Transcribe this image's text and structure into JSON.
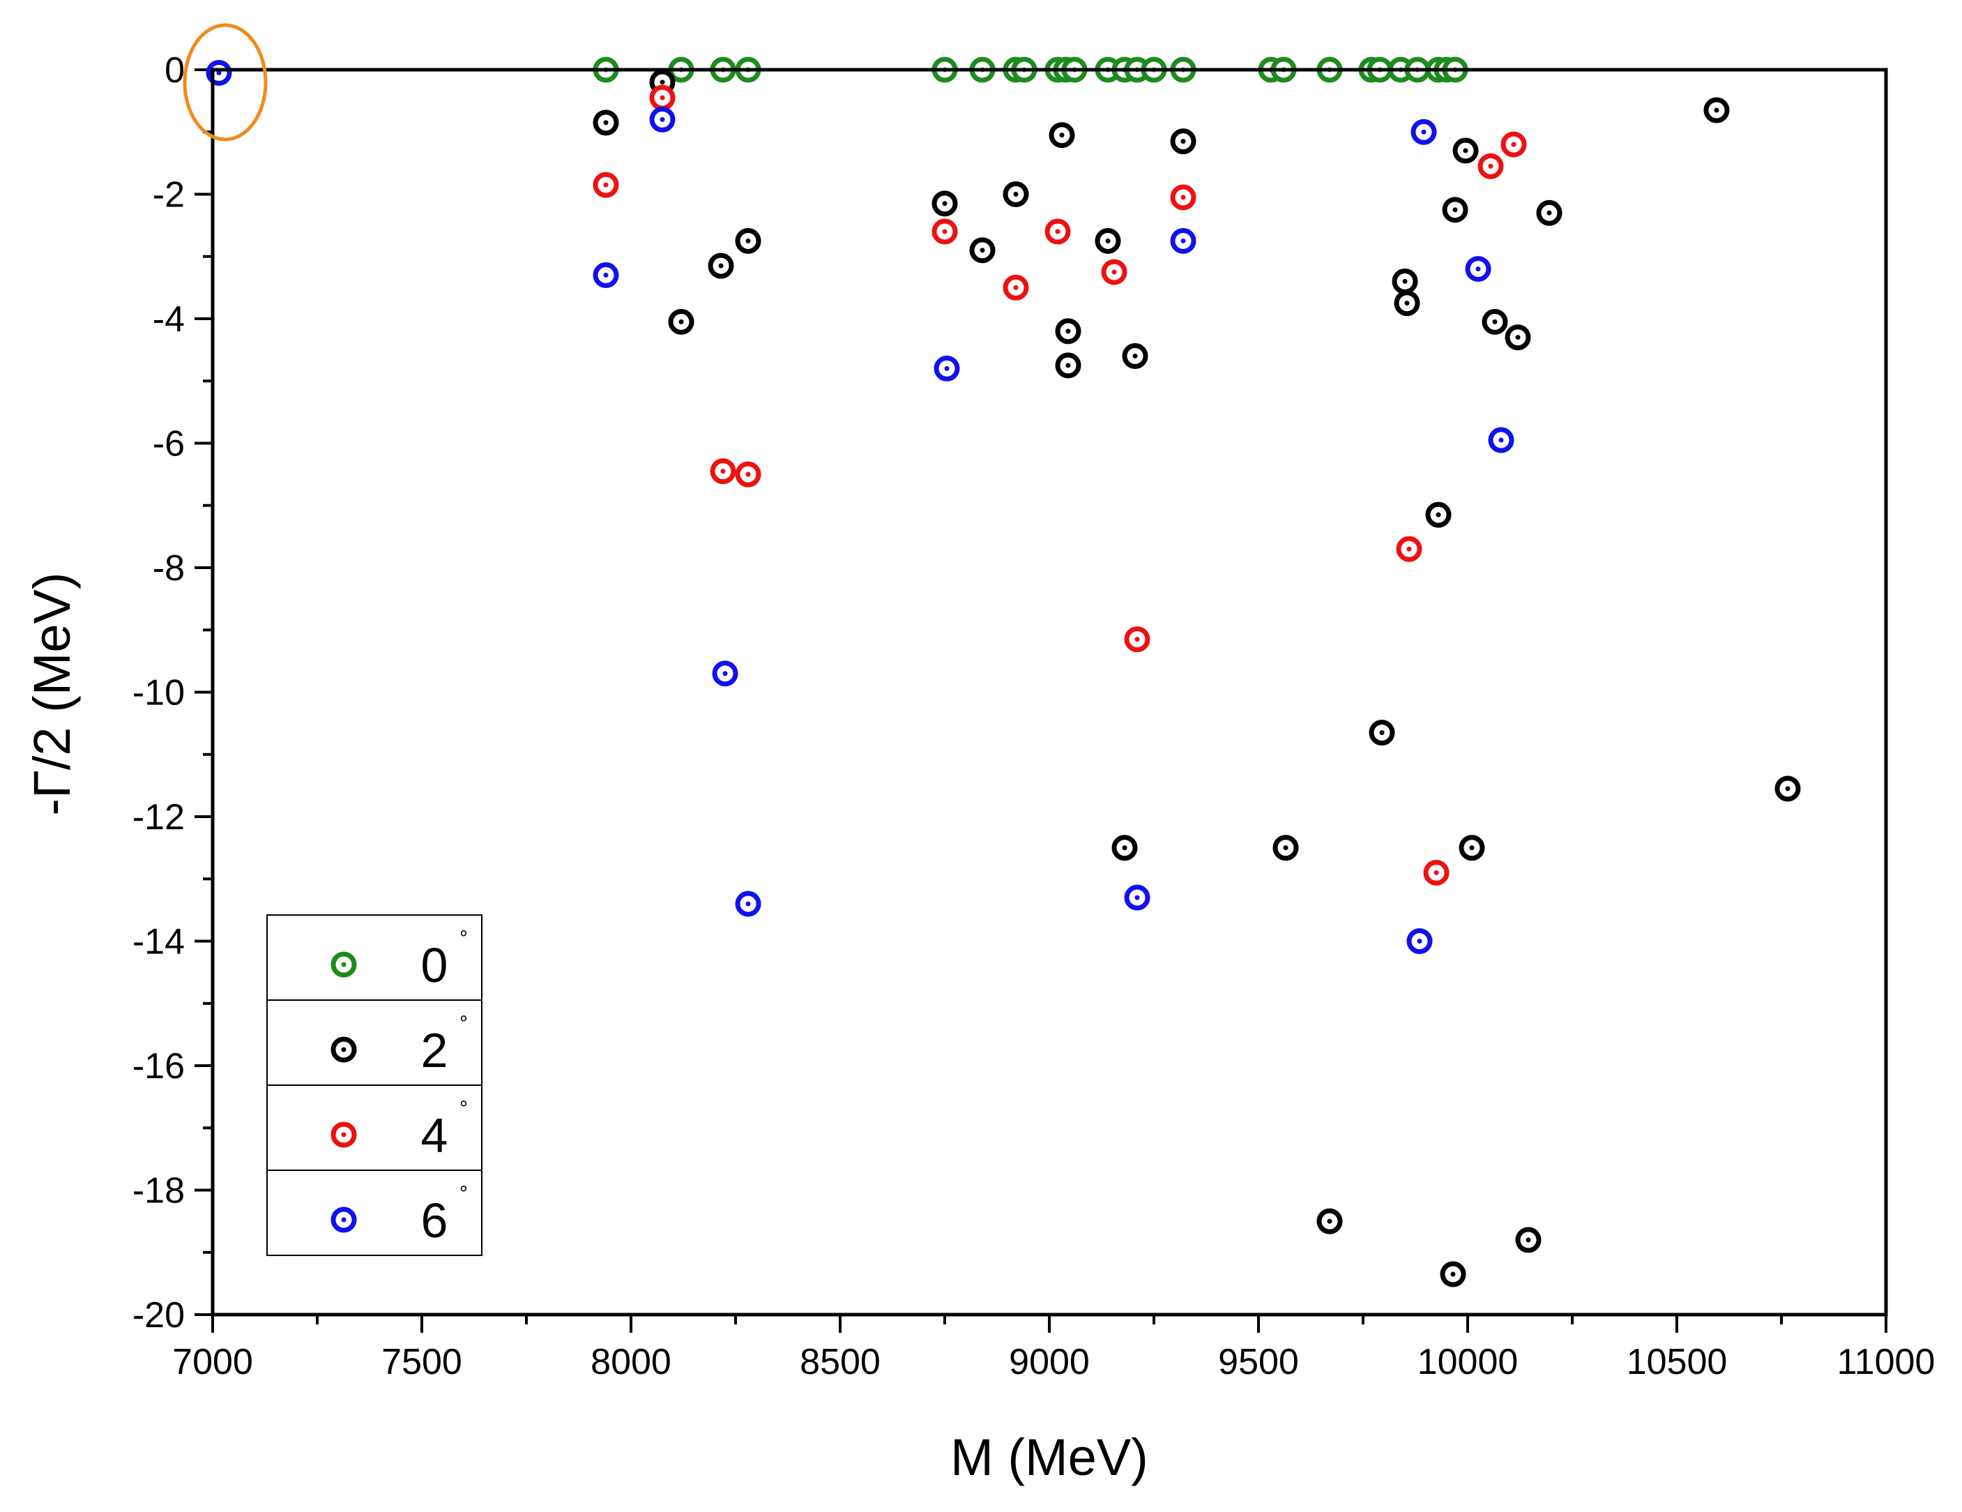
{
  "chart_data": {
    "type": "scatter",
    "title": "",
    "xlabel": "M (MeV)",
    "ylabel": "-Γ/2 (MeV)",
    "xlim": [
      7000,
      11000
    ],
    "ylim": [
      -20,
      0
    ],
    "x_ticks": [
      7000,
      7500,
      8000,
      8500,
      9000,
      9500,
      10000,
      10500,
      11000
    ],
    "y_ticks": [
      0,
      -2,
      -4,
      -6,
      -8,
      -10,
      -12,
      -14,
      -16,
      -18,
      -20
    ],
    "x_tick_labels": [
      "7000",
      "7500",
      "8000",
      "8500",
      "9000",
      "9500",
      "10000",
      "10500",
      "11000"
    ],
    "y_tick_labels": [
      "0",
      "-2",
      "-4",
      "-6",
      "-8",
      "-10",
      "-12",
      "-14",
      "-16",
      "-18",
      "-20"
    ],
    "legend_position": "bottom-left",
    "highlight": {
      "x": 7030,
      "y": -0.3,
      "color": "#f28a1d",
      "shape": "ellipse"
    },
    "series": [
      {
        "name": "0",
        "unit": "°",
        "color": "#1e8b1e",
        "points": [
          [
            7940,
            0
          ],
          [
            8120,
            0
          ],
          [
            8220,
            0
          ],
          [
            8280,
            0
          ],
          [
            8750,
            0
          ],
          [
            8840,
            0
          ],
          [
            8920,
            0
          ],
          [
            8940,
            0
          ],
          [
            9020,
            0
          ],
          [
            9040,
            0
          ],
          [
            9060,
            0
          ],
          [
            9140,
            0
          ],
          [
            9180,
            0
          ],
          [
            9210,
            0
          ],
          [
            9250,
            0
          ],
          [
            9320,
            0
          ],
          [
            9530,
            0
          ],
          [
            9560,
            0
          ],
          [
            9670,
            0
          ],
          [
            9770,
            0
          ],
          [
            9790,
            0
          ],
          [
            9840,
            0
          ],
          [
            9880,
            0
          ],
          [
            9930,
            0
          ],
          [
            9950,
            0
          ],
          [
            9970,
            0
          ]
        ]
      },
      {
        "name": "2",
        "unit": "°",
        "color": "#000000",
        "points": [
          [
            7940,
            -0.85
          ],
          [
            8075,
            -0.2
          ],
          [
            8120,
            -4.05
          ],
          [
            8215,
            -3.15
          ],
          [
            8280,
            -2.75
          ],
          [
            8750,
            -2.15
          ],
          [
            8840,
            -2.9
          ],
          [
            8920,
            -2.0
          ],
          [
            9030,
            -1.05
          ],
          [
            9045,
            -4.2
          ],
          [
            9045,
            -4.75
          ],
          [
            9140,
            -2.75
          ],
          [
            9180,
            -12.5
          ],
          [
            9205,
            -4.6
          ],
          [
            9320,
            -1.15
          ],
          [
            9565,
            -12.5
          ],
          [
            9670,
            -18.5
          ],
          [
            9795,
            -10.65
          ],
          [
            9850,
            -3.4
          ],
          [
            9855,
            -3.75
          ],
          [
            9930,
            -7.15
          ],
          [
            9965,
            -19.35
          ],
          [
            9970,
            -2.25
          ],
          [
            9995,
            -1.3
          ],
          [
            10010,
            -12.5
          ],
          [
            10065,
            -4.05
          ],
          [
            10120,
            -4.3
          ],
          [
            10145,
            -18.8
          ],
          [
            10195,
            -2.3
          ],
          [
            10595,
            -0.65
          ],
          [
            10765,
            -11.55
          ]
        ]
      },
      {
        "name": "4",
        "unit": "°",
        "color": "#ee1111",
        "points": [
          [
            7940,
            -1.85
          ],
          [
            8075,
            -0.45
          ],
          [
            8220,
            -6.45
          ],
          [
            8280,
            -6.5
          ],
          [
            8750,
            -2.6
          ],
          [
            8920,
            -3.5
          ],
          [
            9020,
            -2.6
          ],
          [
            9155,
            -3.25
          ],
          [
            9210,
            -9.15
          ],
          [
            9320,
            -2.05
          ],
          [
            9860,
            -7.7
          ],
          [
            9925,
            -12.9
          ],
          [
            10055,
            -1.55
          ],
          [
            10110,
            -1.2
          ]
        ]
      },
      {
        "name": "6",
        "unit": "°",
        "color": "#1111ee",
        "points": [
          [
            7015,
            -0.05
          ],
          [
            7940,
            -3.3
          ],
          [
            8075,
            -0.8
          ],
          [
            8225,
            -9.7
          ],
          [
            8280,
            -13.4
          ],
          [
            8755,
            -4.8
          ],
          [
            9210,
            -13.3
          ],
          [
            9320,
            -2.75
          ],
          [
            9885,
            -14.0
          ],
          [
            9895,
            -1.0
          ],
          [
            10025,
            -3.2
          ],
          [
            10080,
            -5.95
          ]
        ]
      }
    ]
  }
}
